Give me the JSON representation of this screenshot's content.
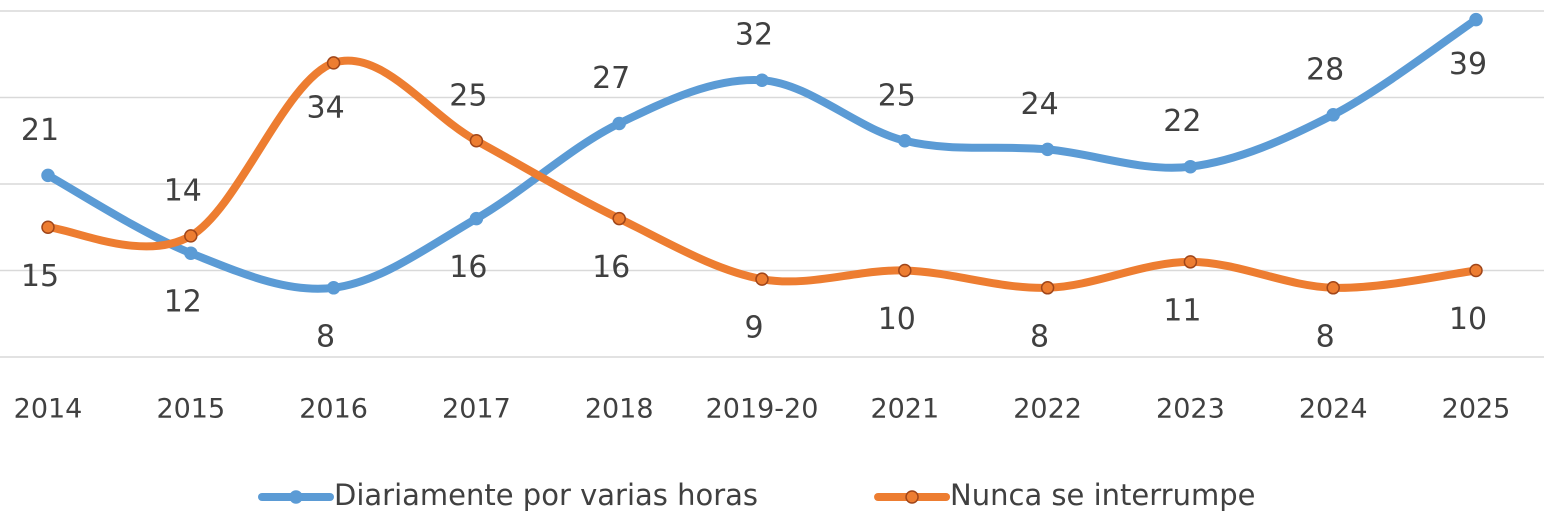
{
  "chart_data": {
    "type": "line",
    "categories": [
      "2014",
      "2015",
      "2016",
      "2017",
      "2018",
      "2019-20",
      "2021",
      "2022",
      "2023",
      "2024",
      "2025"
    ],
    "series": [
      {
        "name": "Diariamente por varias horas",
        "color": "#5b9bd5",
        "values": [
          21,
          12,
          8,
          16,
          27,
          32,
          25,
          24,
          22,
          28,
          39
        ]
      },
      {
        "name": "Nunca se interrumpe",
        "color": "#ed7d31",
        "values": [
          15,
          14,
          34,
          25,
          16,
          9,
          10,
          8,
          11,
          8,
          10
        ]
      }
    ],
    "ylim": [
      0,
      40
    ],
    "yticks": [
      0,
      10,
      20,
      30,
      40
    ],
    "grid": true,
    "smooth": true,
    "legend": "bottom"
  }
}
